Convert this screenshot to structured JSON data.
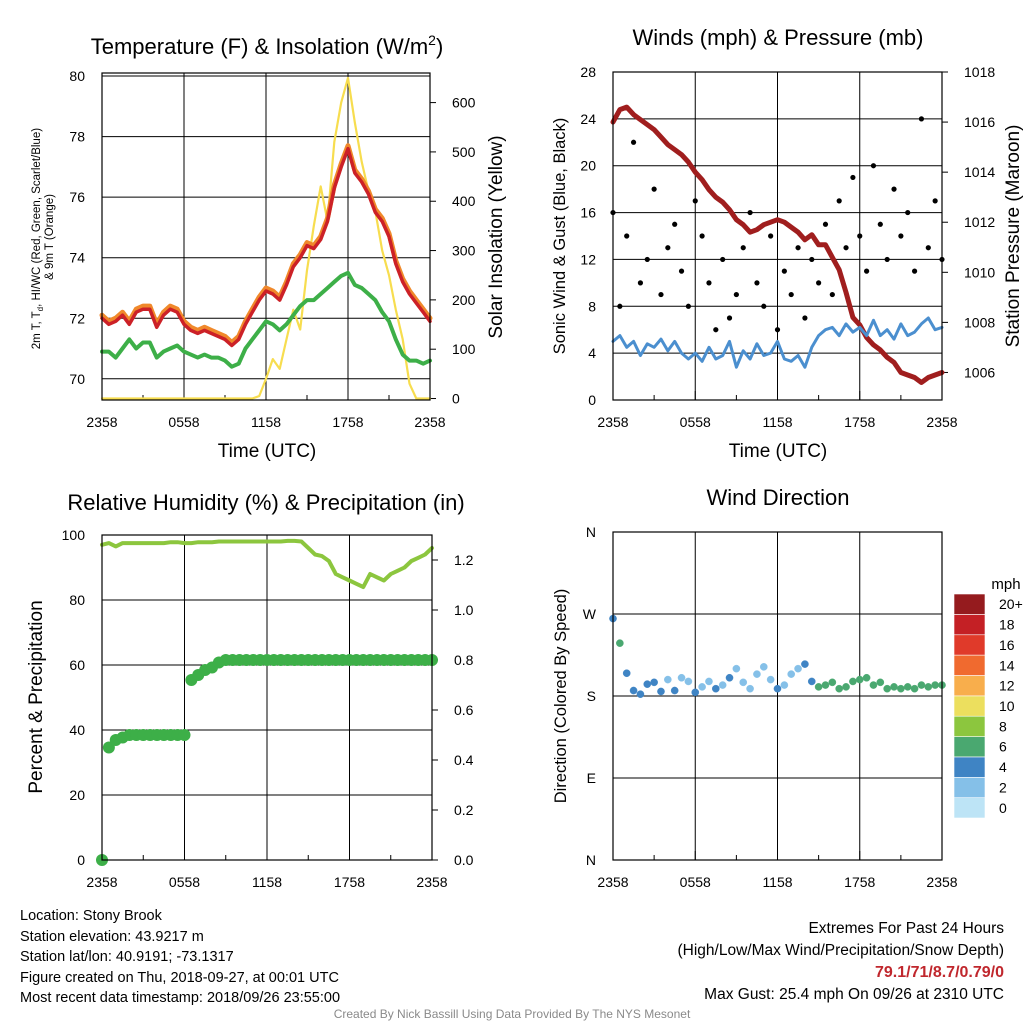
{
  "chart_data": [
    {
      "type": "line",
      "title": "Temperature (F) & Insolation (W/m²)",
      "xlabel": "Time (UTC)",
      "ylabel": "2m T, Td, HI/WC (Red, Green, Scarlet/Blue) & 9m T (Orange)",
      "ylabel2": "Solar Insolation (Yellow)",
      "x_ticks": [
        "2358",
        "0558",
        "1158",
        "1758",
        "2358"
      ],
      "ylim": [
        69.3,
        80.1
      ],
      "y_ticks": [
        70,
        72,
        74,
        76,
        78,
        80
      ],
      "y2lim": [
        -3,
        660
      ],
      "y2_ticks": [
        0,
        100,
        200,
        300,
        400,
        500,
        600
      ],
      "x_hours": [
        0,
        0.5,
        1,
        1.5,
        2,
        2.5,
        3,
        3.5,
        4,
        4.5,
        5,
        5.5,
        6,
        6.5,
        7,
        7.5,
        8,
        8.5,
        9,
        9.5,
        10,
        10.5,
        11,
        11.5,
        12,
        12.5,
        13,
        13.5,
        14,
        14.5,
        15,
        15.5,
        16,
        16.5,
        17,
        17.5,
        18,
        18.5,
        19,
        19.5,
        20,
        20.5,
        21,
        21.5,
        22,
        22.5,
        23,
        23.5,
        24
      ],
      "series": [
        {
          "name": "2m T",
          "color": "#cc2127",
          "values": [
            72.0,
            71.8,
            71.9,
            72.1,
            71.8,
            72.2,
            72.3,
            72.3,
            71.7,
            72.1,
            72.3,
            72.2,
            71.8,
            71.6,
            71.5,
            71.6,
            71.5,
            71.4,
            71.3,
            71.1,
            71.3,
            71.8,
            72.2,
            72.6,
            72.9,
            72.8,
            72.6,
            73.1,
            73.7,
            74.0,
            74.4,
            74.3,
            74.6,
            75.2,
            76.3,
            77.0,
            77.6,
            76.8,
            76.5,
            76.1,
            75.5,
            75.2,
            74.7,
            73.8,
            73.2,
            72.8,
            72.5,
            72.2,
            71.9
          ]
        },
        {
          "name": "9m T",
          "color": "#f0892b",
          "values": [
            72.1,
            71.9,
            72.0,
            72.2,
            71.9,
            72.3,
            72.4,
            72.4,
            71.8,
            72.2,
            72.4,
            72.3,
            71.9,
            71.7,
            71.6,
            71.7,
            71.6,
            71.5,
            71.4,
            71.2,
            71.4,
            71.9,
            72.3,
            72.7,
            73.0,
            72.9,
            72.7,
            73.2,
            73.8,
            74.1,
            74.5,
            74.4,
            74.7,
            75.3,
            76.4,
            77.1,
            77.7,
            76.9,
            76.6,
            76.2,
            75.6,
            75.3,
            74.8,
            73.9,
            73.3,
            72.9,
            72.6,
            72.3,
            72.0
          ]
        },
        {
          "name": "Td",
          "color": "#3daf48",
          "values": [
            70.9,
            70.9,
            70.7,
            71.0,
            71.3,
            71.0,
            71.2,
            71.2,
            70.7,
            70.9,
            71.0,
            71.1,
            70.9,
            70.8,
            70.7,
            70.8,
            70.7,
            70.7,
            70.6,
            70.4,
            70.5,
            71.0,
            71.3,
            71.6,
            71.9,
            71.8,
            71.6,
            71.8,
            72.1,
            72.4,
            72.6,
            72.6,
            72.8,
            73.0,
            73.2,
            73.4,
            73.5,
            73.1,
            73.0,
            72.8,
            72.6,
            72.2,
            71.9,
            71.3,
            70.8,
            70.6,
            70.6,
            70.5,
            70.6
          ]
        },
        {
          "name": "Solar Insolation",
          "color": "#f7dd4f",
          "axis": "right",
          "values": [
            0,
            0,
            0,
            0,
            0,
            0,
            0,
            0,
            0,
            0,
            0,
            0,
            0,
            0,
            0,
            0,
            0,
            0,
            0,
            0,
            0,
            0,
            0,
            5,
            40,
            80,
            60,
            120,
            180,
            140,
            260,
            350,
            430,
            360,
            520,
            600,
            650,
            560,
            480,
            420,
            380,
            300,
            250,
            180,
            120,
            30,
            0,
            0,
            0
          ]
        }
      ]
    },
    {
      "type": "scatter",
      "title": "Winds (mph) & Pressure (mb)",
      "xlabel": "Time (UTC)",
      "ylabel": "Sonic Wind & Gust (Blue, Black)",
      "ylabel2": "Station Pressure (Maroon)",
      "x_ticks": [
        "2358",
        "0558",
        "1158",
        "1758",
        "2358"
      ],
      "ylim": [
        0,
        28
      ],
      "y_ticks": [
        0,
        4,
        8,
        12,
        16,
        20,
        24,
        28
      ],
      "y2lim": [
        1004.9,
        1018
      ],
      "y2_ticks": [
        1006,
        1008,
        1010,
        1012,
        1014,
        1016,
        1018
      ],
      "x_hours": [
        0,
        0.5,
        1,
        1.5,
        2,
        2.5,
        3,
        3.5,
        4,
        4.5,
        5,
        5.5,
        6,
        6.5,
        7,
        7.5,
        8,
        8.5,
        9,
        9.5,
        10,
        10.5,
        11,
        11.5,
        12,
        12.5,
        13,
        13.5,
        14,
        14.5,
        15,
        15.5,
        16,
        16.5,
        17,
        17.5,
        18,
        18.5,
        19,
        19.5,
        20,
        20.5,
        21,
        21.5,
        22,
        22.5,
        23,
        23.5,
        24
      ],
      "series": [
        {
          "name": "Station Pressure",
          "color": "#a01e1e",
          "axis": "right",
          "values": [
            1016.0,
            1016.5,
            1016.6,
            1016.3,
            1016.1,
            1015.9,
            1015.7,
            1015.4,
            1015.1,
            1014.9,
            1014.7,
            1014.4,
            1014.0,
            1013.7,
            1013.3,
            1013.0,
            1012.8,
            1012.5,
            1012.1,
            1011.9,
            1011.6,
            1011.7,
            1011.9,
            1012.0,
            1012.1,
            1012.0,
            1011.8,
            1011.6,
            1011.3,
            1011.5,
            1011.1,
            1011.1,
            1010.6,
            1010.1,
            1009.2,
            1008.2,
            1007.9,
            1007.4,
            1007.1,
            1006.9,
            1006.6,
            1006.4,
            1006.0,
            1005.9,
            1005.8,
            1005.6,
            1005.8,
            1005.9,
            1006.0
          ]
        },
        {
          "name": "Sonic Wind",
          "color": "#4b8fcf",
          "values": [
            5,
            5.5,
            4.5,
            5,
            3.8,
            4.8,
            4.5,
            5.2,
            4.2,
            5,
            4,
            3.5,
            4,
            3.3,
            4.5,
            3.5,
            3.8,
            5,
            2.8,
            4.2,
            3.5,
            4.8,
            3.8,
            4,
            5,
            3.5,
            3.3,
            3.8,
            2.8,
            4.5,
            5.5,
            6,
            6.2,
            5.5,
            6.5,
            5.8,
            6.2,
            5.5,
            6.8,
            5.5,
            6,
            5.2,
            6.5,
            5.5,
            5.8,
            6.5,
            7,
            6,
            6.2
          ]
        },
        {
          "name": "Gust",
          "color": "#000000",
          "values": [
            16,
            8,
            14,
            22,
            10,
            12,
            18,
            9,
            13,
            15,
            11,
            8,
            17,
            14,
            10,
            6,
            12,
            7,
            9,
            13,
            16,
            10,
            8,
            14,
            6,
            11,
            9,
            13,
            7,
            12,
            10,
            15,
            9,
            17,
            13,
            19,
            14,
            11,
            20,
            15,
            12,
            18,
            14,
            16,
            11,
            24,
            13,
            17,
            12
          ]
        }
      ]
    },
    {
      "type": "scatter",
      "title": "Relative Humidity (%) & Precipitation (in)",
      "xlabel": "",
      "ylabel": "Percent & Precipitation",
      "x_ticks": [
        "2358",
        "0558",
        "1158",
        "1758",
        "2358"
      ],
      "ylim": [
        0,
        100
      ],
      "y_ticks": [
        0,
        20,
        40,
        60,
        80,
        100
      ],
      "y2lim": [
        0,
        1.3
      ],
      "y2_ticks": [
        "0.0",
        "0.2",
        "0.4",
        "0.6",
        "0.8",
        "1.0",
        "1.2"
      ],
      "x_hours": [
        0,
        0.5,
        1,
        1.5,
        2,
        2.5,
        3,
        3.5,
        4,
        4.5,
        5,
        5.5,
        6,
        6.5,
        7,
        7.5,
        8,
        8.5,
        9,
        9.5,
        10,
        10.5,
        11,
        11.5,
        12,
        12.5,
        13,
        13.5,
        14,
        14.5,
        15,
        15.5,
        16,
        16.5,
        17,
        17.5,
        18,
        18.5,
        19,
        19.5,
        20,
        20.5,
        21,
        21.5,
        22,
        22.5,
        23,
        23.5,
        24
      ],
      "series": [
        {
          "name": "Relative Humidity",
          "color": "#8cc63e",
          "values": [
            97,
            97.5,
            96.5,
            97.5,
            97.5,
            97.5,
            97.5,
            97.5,
            97.5,
            97.5,
            97.8,
            97.8,
            97.5,
            97.5,
            97.8,
            97.8,
            97.8,
            98,
            98,
            98,
            98,
            98,
            98,
            98,
            98,
            98,
            98,
            98.2,
            98.2,
            98,
            96,
            94,
            93.5,
            92,
            88,
            87,
            86,
            85,
            84,
            88,
            87,
            86,
            88,
            89,
            90,
            92,
            93,
            94,
            96
          ]
        },
        {
          "name": "Precipitation",
          "color": "#3daf48",
          "axis": "right",
          "values": [
            0,
            0.45,
            0.48,
            0.49,
            0.5,
            0.5,
            0.5,
            0.5,
            0.5,
            0.5,
            0.5,
            0.5,
            0.5,
            0.72,
            0.74,
            0.76,
            0.77,
            0.79,
            0.8,
            0.8,
            0.8,
            0.8,
            0.8,
            0.8,
            0.8,
            0.8,
            0.8,
            0.8,
            0.8,
            0.8,
            0.8,
            0.8,
            0.8,
            0.8,
            0.8,
            0.8,
            0.8,
            0.8,
            0.8,
            0.8,
            0.8,
            0.8,
            0.8,
            0.8,
            0.8,
            0.8,
            0.8,
            0.8,
            0.8
          ]
        }
      ]
    },
    {
      "type": "scatter",
      "title": "Wind Direction",
      "xlabel": "",
      "ylabel": "Direction (Colored By Speed)",
      "x_ticks": [
        "2358",
        "0558",
        "1158",
        "1758",
        "2358"
      ],
      "y_tick_labels": [
        "N",
        "E",
        "S",
        "W",
        "N"
      ],
      "ylim": [
        0,
        360
      ],
      "colorbar": {
        "title": "mph",
        "labels": [
          "0",
          "2",
          "4",
          "6",
          "8",
          "10",
          "12",
          "14",
          "16",
          "18",
          "20+"
        ],
        "colors": [
          "#bde4f6",
          "#85c0e8",
          "#3f84c4",
          "#4aa870",
          "#8cc63e",
          "#ecdf5e",
          "#f8ae4c",
          "#f06a2f",
          "#e03a2a",
          "#c42025",
          "#951b1e"
        ]
      },
      "x_hours": [
        0,
        0.5,
        1,
        1.5,
        2,
        2.5,
        3,
        3.5,
        4,
        4.5,
        5,
        5.5,
        6,
        6.5,
        7,
        7.5,
        8,
        8.5,
        9,
        9.5,
        10,
        10.5,
        11,
        11.5,
        12,
        12.5,
        13,
        13.5,
        14,
        14.5,
        15,
        15.5,
        16,
        16.5,
        17,
        17.5,
        18,
        18.5,
        19,
        19.5,
        20,
        20.5,
        21,
        21.5,
        22,
        22.5,
        23,
        23.5,
        24
      ],
      "series": [
        {
          "name": "Wind Direction",
          "values": [
            265,
            238,
            205,
            186,
            182,
            193,
            195,
            185,
            198,
            186,
            200,
            196,
            184,
            190,
            196,
            188,
            192,
            200,
            210,
            195,
            188,
            204,
            212,
            198,
            188,
            192,
            204,
            210,
            215,
            196,
            190,
            192,
            195,
            188,
            190,
            196,
            198,
            200,
            192,
            195,
            188,
            190,
            188,
            190,
            188,
            192,
            190,
            192,
            192
          ],
          "speeds": [
            5,
            6,
            5,
            5,
            4,
            5,
            4,
            4,
            3,
            4,
            3,
            3,
            4,
            3,
            3,
            4,
            3,
            4,
            2,
            3,
            3,
            3,
            2,
            3,
            4,
            3,
            3,
            3,
            4,
            4,
            6,
            6,
            7,
            6,
            6,
            6,
            7,
            6,
            6,
            7,
            6,
            7,
            6,
            6,
            6,
            7,
            7,
            6,
            6
          ]
        }
      ]
    }
  ],
  "footer": {
    "location": "Location: Stony Brook",
    "elevation": "Station elevation: 43.9217 m",
    "latlon": "Station lat/lon: 40.9191; -73.1317",
    "created": "Figure created on Thu, 2018-09-27, at 00:01 UTC",
    "timestamp": "Most recent data timestamp: 2018/09/26 23:55:00",
    "extremes_title": "Extremes For Past 24 Hours",
    "extremes_legend": "(High/Low/Max Wind/Precipitation/Snow Depth)",
    "extremes_values": "79.1/71/8.7/0.79/0",
    "max_gust": "Max Gust: 25.4 mph On 09/26 at 2310 UTC",
    "credit": "Created By Nick Bassill Using Data Provided By The NYS Mesonet"
  },
  "accent_colors": {
    "extremes": "#c0272d",
    "credit": "#8a8a8a"
  }
}
